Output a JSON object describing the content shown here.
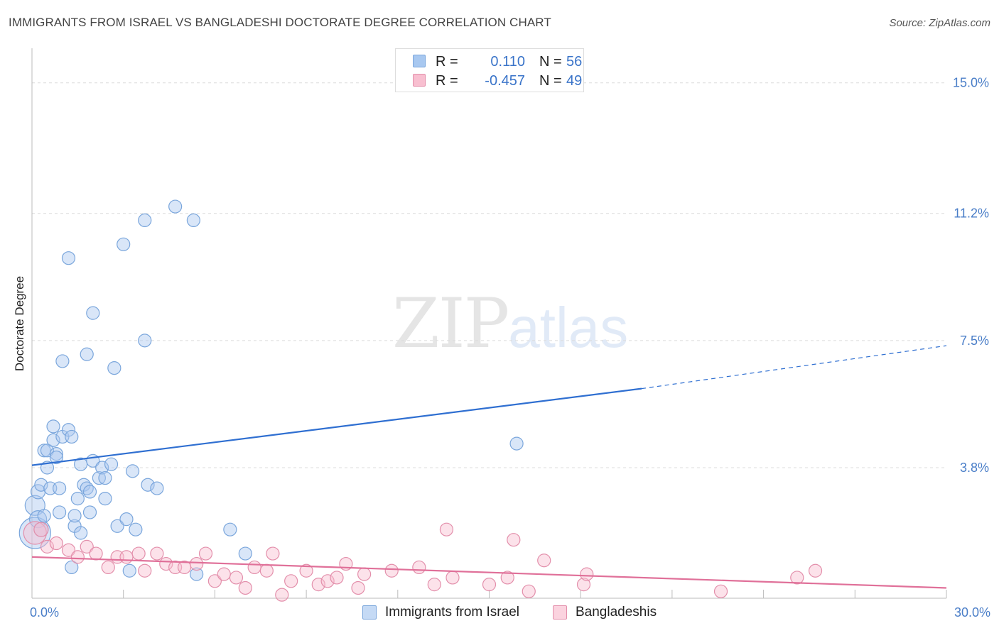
{
  "title": "IMMIGRANTS FROM ISRAEL VS BANGLADESHI DOCTORATE DEGREE CORRELATION CHART",
  "source": "Source: ZipAtlas.com",
  "watermark": {
    "zip": "ZIP",
    "atlas": "atlas"
  },
  "legend_top": [
    {
      "r_label": "R =",
      "r_value": "0.110",
      "n_label": "N =",
      "n_value": "56",
      "color": "#a8c8f0",
      "border": "#7aa6dc"
    },
    {
      "r_label": "R =",
      "r_value": "-0.457",
      "n_label": "N =",
      "n_value": "49",
      "color": "#f8bfd0",
      "border": "#e38fab"
    }
  ],
  "legend_bottom": [
    {
      "label": "Immigrants from Israel",
      "color": "#c5daf5",
      "border": "#7aa6dc"
    },
    {
      "label": "Bangladeshis",
      "color": "#fbd3df",
      "border": "#e38fab"
    }
  ],
  "chart_data": {
    "type": "scatter",
    "title": "IMMIGRANTS FROM ISRAEL VS BANGLADESHI DOCTORATE DEGREE CORRELATION CHART",
    "xlabel": "",
    "ylabel": "Doctorate Degree",
    "xlim": [
      0,
      30
    ],
    "ylim": [
      0,
      15.8
    ],
    "x_tick_labels": [
      "0.0%",
      "30.0%"
    ],
    "y_ticks": [
      3.8,
      7.5,
      11.2,
      15.0
    ],
    "y_tick_labels": [
      "3.8%",
      "7.5%",
      "11.2%",
      "15.0%"
    ],
    "grid": true,
    "legend_position": "top-center",
    "series": [
      {
        "name": "Immigrants from Israel",
        "color": "#7aa6dc",
        "fill": "rgba(170,200,240,0.45)",
        "trend": {
          "x0": 0,
          "y0": 3.87,
          "x1": 20,
          "y1": 6.1,
          "dash_to_x": 30,
          "dash_to_y": 7.35,
          "color": "#2f6fd1"
        },
        "points": [
          [
            0.1,
            1.9,
            22
          ],
          [
            0.1,
            2.7,
            14
          ],
          [
            0.2,
            2.3,
            12
          ],
          [
            0.2,
            3.1,
            10
          ],
          [
            0.3,
            2.0,
            10
          ],
          [
            0.3,
            3.3,
            9
          ],
          [
            0.4,
            2.4,
            9
          ],
          [
            0.4,
            4.3,
            9
          ],
          [
            0.5,
            4.3,
            9
          ],
          [
            0.5,
            3.8,
            9
          ],
          [
            0.6,
            3.2,
            9
          ],
          [
            0.7,
            5.0,
            9
          ],
          [
            0.7,
            4.6,
            9
          ],
          [
            0.8,
            4.2,
            9
          ],
          [
            0.8,
            4.1,
            9
          ],
          [
            0.9,
            2.5,
            9
          ],
          [
            0.9,
            3.2,
            9
          ],
          [
            1.0,
            6.9,
            9
          ],
          [
            1.0,
            4.7,
            9
          ],
          [
            1.2,
            9.9,
            9
          ],
          [
            1.2,
            4.9,
            9
          ],
          [
            1.3,
            4.7,
            9
          ],
          [
            1.3,
            0.9,
            9
          ],
          [
            1.4,
            2.1,
            9
          ],
          [
            1.4,
            2.4,
            9
          ],
          [
            1.5,
            2.9,
            9
          ],
          [
            1.6,
            3.9,
            9
          ],
          [
            1.6,
            1.9,
            9
          ],
          [
            1.7,
            3.3,
            9
          ],
          [
            1.8,
            7.1,
            9
          ],
          [
            1.8,
            3.2,
            9
          ],
          [
            1.9,
            2.5,
            9
          ],
          [
            1.9,
            3.1,
            9
          ],
          [
            2.0,
            4.0,
            9
          ],
          [
            2.0,
            8.3,
            9
          ],
          [
            2.2,
            3.5,
            9
          ],
          [
            2.3,
            3.8,
            9
          ],
          [
            2.4,
            3.5,
            9
          ],
          [
            2.4,
            2.9,
            9
          ],
          [
            2.6,
            3.9,
            9
          ],
          [
            2.7,
            6.7,
            9
          ],
          [
            2.8,
            2.1,
            9
          ],
          [
            3.0,
            10.3,
            9
          ],
          [
            3.1,
            2.3,
            9
          ],
          [
            3.2,
            0.8,
            9
          ],
          [
            3.3,
            3.7,
            9
          ],
          [
            3.4,
            2.0,
            9
          ],
          [
            3.7,
            11.0,
            9
          ],
          [
            3.7,
            7.5,
            9
          ],
          [
            3.8,
            3.3,
            9
          ],
          [
            4.1,
            3.2,
            9
          ],
          [
            4.7,
            11.4,
            9
          ],
          [
            5.3,
            11.0,
            9
          ],
          [
            5.4,
            0.7,
            9
          ],
          [
            6.5,
            2.0,
            9
          ],
          [
            7.0,
            1.3,
            9
          ],
          [
            15.9,
            4.5,
            9
          ]
        ]
      },
      {
        "name": "Bangladeshis",
        "color": "#e38fab",
        "fill": "rgba(248,191,208,0.45)",
        "trend": {
          "x0": 0,
          "y0": 1.2,
          "x1": 30,
          "y1": 0.3,
          "color": "#e07099"
        },
        "points": [
          [
            0.1,
            1.9,
            16
          ],
          [
            0.3,
            2.0,
            10
          ],
          [
            0.5,
            1.5,
            9
          ],
          [
            0.8,
            1.6,
            9
          ],
          [
            1.2,
            1.4,
            9
          ],
          [
            1.5,
            1.2,
            9
          ],
          [
            1.8,
            1.5,
            9
          ],
          [
            2.1,
            1.3,
            9
          ],
          [
            2.5,
            0.9,
            9
          ],
          [
            2.8,
            1.2,
            9
          ],
          [
            3.1,
            1.2,
            9
          ],
          [
            3.5,
            1.3,
            9
          ],
          [
            3.7,
            0.8,
            9
          ],
          [
            4.1,
            1.3,
            9
          ],
          [
            4.4,
            1.0,
            9
          ],
          [
            4.7,
            0.9,
            9
          ],
          [
            5.0,
            0.9,
            9
          ],
          [
            5.4,
            1.0,
            9
          ],
          [
            5.7,
            1.3,
            9
          ],
          [
            6.0,
            0.5,
            9
          ],
          [
            6.3,
            0.7,
            9
          ],
          [
            6.7,
            0.6,
            9
          ],
          [
            7.0,
            0.3,
            9
          ],
          [
            7.3,
            0.9,
            9
          ],
          [
            7.7,
            0.8,
            9
          ],
          [
            7.9,
            1.3,
            9
          ],
          [
            8.2,
            0.1,
            9
          ],
          [
            8.5,
            0.5,
            9
          ],
          [
            9.0,
            0.8,
            9
          ],
          [
            9.4,
            0.4,
            9
          ],
          [
            9.7,
            0.5,
            9
          ],
          [
            10.0,
            0.6,
            9
          ],
          [
            10.3,
            1.0,
            9
          ],
          [
            10.7,
            0.3,
            9
          ],
          [
            10.9,
            0.7,
            9
          ],
          [
            11.8,
            0.8,
            9
          ],
          [
            12.7,
            0.9,
            9
          ],
          [
            13.2,
            0.4,
            9
          ],
          [
            13.6,
            2.0,
            9
          ],
          [
            13.8,
            0.6,
            9
          ],
          [
            15.0,
            0.4,
            9
          ],
          [
            15.6,
            0.6,
            9
          ],
          [
            15.8,
            1.7,
            9
          ],
          [
            16.3,
            0.2,
            9
          ],
          [
            16.8,
            1.1,
            9
          ],
          [
            18.1,
            0.4,
            9
          ],
          [
            18.2,
            0.7,
            9
          ],
          [
            22.6,
            0.2,
            9
          ],
          [
            25.1,
            0.6,
            9
          ],
          [
            25.7,
            0.8,
            9
          ]
        ]
      }
    ]
  }
}
